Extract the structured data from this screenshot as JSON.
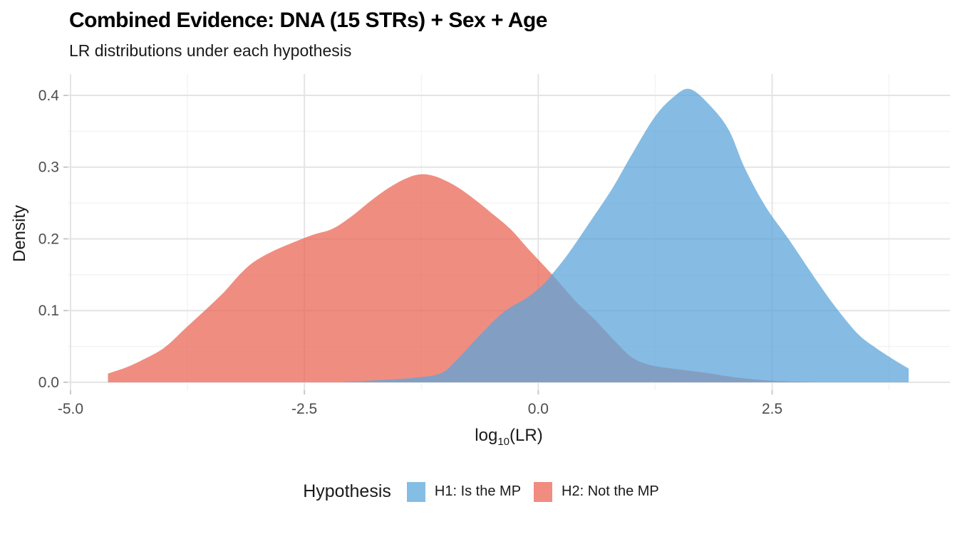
{
  "header": {
    "title": "Combined Evidence: DNA (15 STRs) + Sex + Age",
    "subtitle": "LR distributions under each hypothesis"
  },
  "chart_data": {
    "type": "area",
    "title": "Combined Evidence: DNA (15 STRs) + Sex + Age",
    "subtitle": "LR distributions under each hypothesis",
    "xlabel_pre": "log",
    "xlabel_sub": "10",
    "xlabel_post": "(LR)",
    "ylabel": "Density",
    "xlim": [
      -5.03,
      4.4
    ],
    "ylim": [
      -0.011,
      0.4298
    ],
    "grid": true,
    "x_ticks": {
      "values": [
        -5.0,
        -2.5,
        0.0,
        2.5
      ],
      "labels": [
        "-5.0",
        "-2.5",
        "0.0",
        "2.5"
      ]
    },
    "x_minor": [
      -3.75,
      -1.25,
      1.25,
      3.75
    ],
    "y_ticks": {
      "values": [
        0.0,
        0.1,
        0.2,
        0.3,
        0.4
      ],
      "labels": [
        "0.0",
        "0.1",
        "0.2",
        "0.3",
        "0.4"
      ]
    },
    "y_minor": [
      0.05,
      0.15,
      0.25,
      0.35
    ],
    "legend": {
      "title": "Hypothesis",
      "position": "bottom"
    },
    "series": [
      {
        "name": "H1: Is the MP",
        "fill": "#5DA6DA",
        "fill_opacity": 0.75,
        "legend_color": "#85BEE4",
        "points": [
          [
            -2.1,
            0.0
          ],
          [
            -1.7,
            0.003
          ],
          [
            -1.35,
            0.006
          ],
          [
            -1.05,
            0.012
          ],
          [
            -0.88,
            0.03
          ],
          [
            -0.63,
            0.065
          ],
          [
            -0.37,
            0.098
          ],
          [
            -0.12,
            0.118
          ],
          [
            0.05,
            0.136
          ],
          [
            0.15,
            0.151
          ],
          [
            0.33,
            0.181
          ],
          [
            0.56,
            0.225
          ],
          [
            0.79,
            0.27
          ],
          [
            1.01,
            0.32
          ],
          [
            1.24,
            0.369
          ],
          [
            1.43,
            0.396
          ],
          [
            1.62,
            0.409
          ],
          [
            1.85,
            0.384
          ],
          [
            2.04,
            0.351
          ],
          [
            2.21,
            0.298
          ],
          [
            2.43,
            0.245
          ],
          [
            2.68,
            0.199
          ],
          [
            2.99,
            0.139
          ],
          [
            3.19,
            0.103
          ],
          [
            3.42,
            0.067
          ],
          [
            3.62,
            0.047
          ],
          [
            3.82,
            0.03
          ],
          [
            3.96,
            0.019
          ]
        ]
      },
      {
        "name": "H2: Not the MP",
        "fill": "#EA6150",
        "fill_opacity": 0.72,
        "legend_color": "#F08D80",
        "points": [
          [
            -4.6,
            0.012
          ],
          [
            -4.4,
            0.021
          ],
          [
            -4.25,
            0.03
          ],
          [
            -4.0,
            0.048
          ],
          [
            -3.75,
            0.078
          ],
          [
            -3.5,
            0.108
          ],
          [
            -3.35,
            0.127
          ],
          [
            -3.2,
            0.149
          ],
          [
            -3.05,
            0.167
          ],
          [
            -2.85,
            0.182
          ],
          [
            -2.6,
            0.196
          ],
          [
            -2.4,
            0.206
          ],
          [
            -2.2,
            0.214
          ],
          [
            -2.0,
            0.231
          ],
          [
            -1.8,
            0.252
          ],
          [
            -1.6,
            0.271
          ],
          [
            -1.4,
            0.285
          ],
          [
            -1.25,
            0.29
          ],
          [
            -1.1,
            0.287
          ],
          [
            -0.9,
            0.275
          ],
          [
            -0.7,
            0.257
          ],
          [
            -0.5,
            0.236
          ],
          [
            -0.3,
            0.214
          ],
          [
            -0.1,
            0.185
          ],
          [
            0.15,
            0.15
          ],
          [
            0.4,
            0.113
          ],
          [
            0.6,
            0.088
          ],
          [
            0.8,
            0.06
          ],
          [
            1.0,
            0.035
          ],
          [
            1.2,
            0.024
          ],
          [
            1.5,
            0.018
          ],
          [
            1.8,
            0.013
          ],
          [
            2.1,
            0.007
          ],
          [
            2.4,
            0.003
          ],
          [
            2.7,
            0.001
          ],
          [
            3.0,
            0.0
          ]
        ]
      }
    ]
  },
  "colors": {
    "grid_major": "#E4E4E4",
    "grid_minor": "#F2F2F2",
    "tick_mark": "#C9C9C9",
    "tick_label": "#4D4D4D"
  }
}
